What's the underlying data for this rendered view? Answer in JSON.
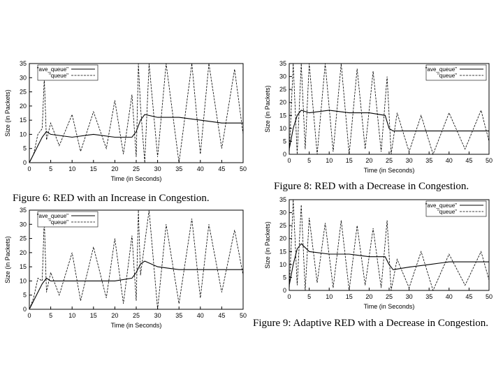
{
  "figures": [
    {
      "caption": "Figure 6: RED with an Increase in Congestion."
    },
    {
      "caption": "Figure 8: RED with a Decrease in Congestion."
    },
    {
      "caption": "Figure 9: Adaptive RED with a Decrease in Congestion."
    }
  ],
  "chart_data": [
    {
      "type": "line",
      "title": "",
      "xlabel": "Time (in Seconds)",
      "ylabel": "Size (in Packets)",
      "xlim": [
        0,
        50
      ],
      "ylim": [
        0,
        35
      ],
      "xticks": [
        0,
        5,
        10,
        15,
        20,
        25,
        30,
        35,
        40,
        45,
        50
      ],
      "yticks": [
        0,
        5,
        10,
        15,
        20,
        25,
        30,
        35
      ],
      "legend_position": "top-left",
      "series": [
        {
          "name": "\"ave_queue\"",
          "style": "solid",
          "x": [
            0,
            2,
            3,
            4,
            5,
            10,
            15,
            20,
            24,
            25,
            26,
            27,
            30,
            35,
            40,
            45,
            50
          ],
          "y": [
            0,
            6,
            9,
            11,
            10,
            9,
            10,
            9,
            9,
            11,
            15,
            17,
            16,
            16,
            15,
            14,
            14
          ]
        },
        {
          "name": "\"queue\"",
          "style": "dashed",
          "x": [
            0,
            1,
            2,
            3,
            3.5,
            4,
            5,
            7,
            10,
            12,
            15,
            18,
            20,
            22,
            24,
            25,
            25.5,
            26,
            27,
            28,
            30,
            32,
            35,
            38,
            40,
            42,
            45,
            48,
            50
          ],
          "y": [
            0,
            3,
            10,
            12,
            30,
            8,
            14,
            6,
            17,
            4,
            18,
            5,
            22,
            3,
            24,
            2,
            35,
            20,
            0,
            35,
            2,
            35,
            0,
            35,
            3,
            35,
            5,
            33,
            10
          ]
        }
      ]
    },
    {
      "type": "line",
      "title": "",
      "xlabel": "Time (in Seconds)",
      "ylabel": "Size (in Packets)",
      "xlim": [
        0,
        50
      ],
      "ylim": [
        0,
        35
      ],
      "xticks": [
        0,
        5,
        10,
        15,
        20,
        25,
        30,
        35,
        40,
        45,
        50
      ],
      "yticks": [
        0,
        5,
        10,
        15,
        20,
        25,
        30,
        35
      ],
      "legend_position": "top-left",
      "series": [
        {
          "name": "\"ave_queue\"",
          "style": "solid",
          "x": [
            0,
            2,
            3,
            4,
            5,
            10,
            15,
            20,
            24,
            25,
            26,
            27,
            30,
            35,
            40,
            45,
            50
          ],
          "y": [
            0,
            6,
            9,
            11,
            10,
            10,
            10,
            10,
            11,
            13,
            16,
            17,
            15,
            14,
            14,
            14,
            14
          ]
        },
        {
          "name": "\"queue\"",
          "style": "dashed",
          "x": [
            0,
            1,
            2,
            3,
            3.5,
            4,
            5,
            7,
            10,
            12,
            15,
            18,
            20,
            22,
            24,
            25,
            25.5,
            26,
            28,
            30,
            32,
            35,
            38,
            40,
            42,
            45,
            48,
            50
          ],
          "y": [
            0,
            4,
            11,
            10,
            32,
            6,
            13,
            5,
            20,
            3,
            22,
            4,
            25,
            2,
            26,
            3,
            35,
            12,
            35,
            0,
            30,
            2,
            32,
            4,
            30,
            6,
            28,
            12
          ]
        }
      ]
    },
    {
      "type": "line",
      "title": "",
      "xlabel": "Time (in Seconds)",
      "ylabel": "Size (in Packets)",
      "xlim": [
        0,
        50
      ],
      "ylim": [
        0,
        35
      ],
      "xticks": [
        0,
        5,
        10,
        15,
        20,
        25,
        30,
        35,
        40,
        45,
        50
      ],
      "yticks": [
        0,
        5,
        10,
        15,
        20,
        25,
        30,
        35
      ],
      "legend_position": "top-right",
      "series": [
        {
          "name": "\"ave_queue\"",
          "style": "solid",
          "x": [
            0,
            1,
            2,
            3,
            5,
            10,
            15,
            20,
            24,
            25,
            26,
            30,
            35,
            40,
            45,
            50
          ],
          "y": [
            2,
            10,
            15,
            17,
            16,
            17,
            16,
            16,
            15,
            10,
            9,
            9,
            9,
            9,
            9,
            9
          ]
        },
        {
          "name": "\"queue\"",
          "style": "dashed",
          "x": [
            0,
            1,
            2,
            3,
            4,
            5,
            7,
            9,
            11,
            13,
            15,
            17,
            19,
            21,
            23,
            24.5,
            25.5,
            27,
            30,
            33,
            36,
            40,
            44,
            48,
            50
          ],
          "y": [
            0,
            35,
            0,
            35,
            2,
            35,
            0,
            35,
            1,
            35,
            0,
            33,
            2,
            32,
            1,
            30,
            0,
            16,
            1,
            15,
            0,
            16,
            2,
            17,
            5
          ]
        }
      ]
    },
    {
      "type": "line",
      "title": "",
      "xlabel": "Time (in Seconds)",
      "ylabel": "Size (in Packets)",
      "xlim": [
        0,
        50
      ],
      "ylim": [
        0,
        35
      ],
      "xticks": [
        0,
        5,
        10,
        15,
        20,
        25,
        30,
        35,
        40,
        45,
        50
      ],
      "yticks": [
        0,
        5,
        10,
        15,
        20,
        25,
        30,
        35
      ],
      "legend_position": "top-right",
      "series": [
        {
          "name": "\"ave_queue\"",
          "style": "solid",
          "x": [
            0,
            1,
            2,
            3,
            5,
            10,
            15,
            20,
            24,
            25,
            26,
            30,
            35,
            40,
            45,
            50
          ],
          "y": [
            2,
            10,
            16,
            18,
            15,
            14,
            14,
            13,
            13,
            10,
            8,
            9,
            10,
            11,
            11,
            11
          ]
        },
        {
          "name": "\"queue\"",
          "style": "dashed",
          "x": [
            0,
            1,
            2,
            3,
            4,
            5,
            7,
            9,
            11,
            13,
            15,
            17,
            19,
            21,
            23,
            24.5,
            25.5,
            27,
            30,
            33,
            36,
            40,
            44,
            48,
            50
          ],
          "y": [
            0,
            35,
            2,
            33,
            0,
            28,
            3,
            26,
            1,
            27,
            0,
            25,
            2,
            24,
            1,
            27,
            0,
            12,
            1,
            15,
            0,
            14,
            2,
            15,
            4
          ]
        }
      ]
    }
  ]
}
